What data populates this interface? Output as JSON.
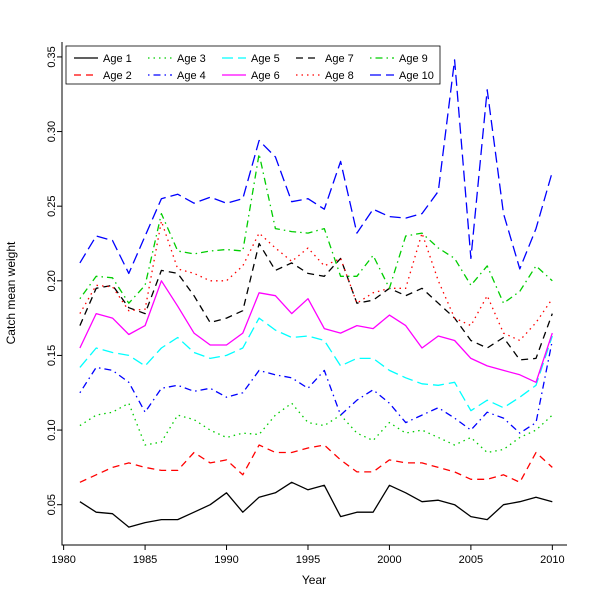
{
  "chart_data": {
    "type": "line",
    "title": "",
    "xlabel": "Year",
    "ylabel": "Catch mean weight",
    "xlim": [
      1979.9,
      2010.9
    ],
    "ylim": [
      0.023,
      0.36
    ],
    "x_ticks": [
      1980,
      1985,
      1990,
      1995,
      2000,
      2005,
      2010
    ],
    "y_ticks": [
      0.05,
      0.1,
      0.15,
      0.2,
      0.25,
      0.3,
      0.35
    ],
    "grid": false,
    "legend": {
      "position": "top-left",
      "columns": 5,
      "rows": 2,
      "border": true
    },
    "x": [
      1981,
      1982,
      1983,
      1984,
      1985,
      1986,
      1987,
      1988,
      1989,
      1990,
      1991,
      1992,
      1993,
      1994,
      1995,
      1996,
      1997,
      1998,
      1999,
      2000,
      2001,
      2002,
      2003,
      2004,
      2005,
      2006,
      2007,
      2008,
      2009,
      2010
    ],
    "series": [
      {
        "name": "Age 1",
        "color": "#000000",
        "dash": "solid",
        "values": [
          0.052,
          0.045,
          0.044,
          0.035,
          0.038,
          0.04,
          0.04,
          0.045,
          0.05,
          0.058,
          0.045,
          0.055,
          0.058,
          0.065,
          0.06,
          0.063,
          0.042,
          0.045,
          0.045,
          0.063,
          0.058,
          0.052,
          0.053,
          0.05,
          0.042,
          0.04,
          0.05,
          0.052,
          0.055,
          0.052
        ]
      },
      {
        "name": "Age 2",
        "color": "#FF0000",
        "dash": "dashed",
        "values": [
          0.065,
          0.07,
          0.075,
          0.078,
          0.075,
          0.073,
          0.073,
          0.085,
          0.078,
          0.08,
          0.07,
          0.09,
          0.085,
          0.085,
          0.088,
          0.09,
          0.08,
          0.072,
          0.072,
          0.08,
          0.078,
          0.078,
          0.075,
          0.072,
          0.067,
          0.067,
          0.07,
          0.065,
          0.085,
          0.075
        ]
      },
      {
        "name": "Age 3",
        "color": "#00CD00",
        "dash": "dotted",
        "values": [
          0.103,
          0.11,
          0.112,
          0.118,
          0.09,
          0.092,
          0.11,
          0.107,
          0.1,
          0.095,
          0.098,
          0.097,
          0.11,
          0.118,
          0.105,
          0.103,
          0.11,
          0.098,
          0.093,
          0.105,
          0.098,
          0.1,
          0.095,
          0.09,
          0.095,
          0.085,
          0.087,
          0.095,
          0.1,
          0.11
        ]
      },
      {
        "name": "Age 4",
        "color": "#0000FF",
        "dash": "dotdash",
        "values": [
          0.125,
          0.142,
          0.14,
          0.132,
          0.112,
          0.128,
          0.13,
          0.126,
          0.128,
          0.122,
          0.125,
          0.14,
          0.137,
          0.135,
          0.128,
          0.14,
          0.11,
          0.12,
          0.127,
          0.118,
          0.105,
          0.11,
          0.115,
          0.108,
          0.1,
          0.112,
          0.108,
          0.098,
          0.105,
          0.16
        ]
      },
      {
        "name": "Age 5",
        "color": "#00FFFF",
        "dash": "longdash",
        "values": [
          0.142,
          0.155,
          0.152,
          0.15,
          0.143,
          0.155,
          0.162,
          0.152,
          0.148,
          0.15,
          0.155,
          0.175,
          0.167,
          0.162,
          0.163,
          0.16,
          0.143,
          0.148,
          0.148,
          0.14,
          0.135,
          0.131,
          0.13,
          0.132,
          0.113,
          0.12,
          0.115,
          0.122,
          0.13,
          0.163
        ]
      },
      {
        "name": "Age 6",
        "color": "#FF00FF",
        "dash": "solid",
        "values": [
          0.155,
          0.178,
          0.175,
          0.164,
          0.17,
          0.2,
          0.183,
          0.165,
          0.157,
          0.157,
          0.165,
          0.192,
          0.19,
          0.178,
          0.188,
          0.168,
          0.165,
          0.17,
          0.168,
          0.177,
          0.17,
          0.155,
          0.163,
          0.16,
          0.148,
          0.143,
          0.14,
          0.137,
          0.132,
          0.165
        ]
      },
      {
        "name": "Age 7",
        "color": "#000000",
        "dash": "dashed",
        "values": [
          0.17,
          0.195,
          0.197,
          0.182,
          0.178,
          0.207,
          0.205,
          0.19,
          0.172,
          0.175,
          0.18,
          0.225,
          0.207,
          0.212,
          0.205,
          0.203,
          0.215,
          0.185,
          0.187,
          0.195,
          0.19,
          0.195,
          0.185,
          0.175,
          0.16,
          0.155,
          0.162,
          0.147,
          0.148,
          0.178
        ]
      },
      {
        "name": "Age 8",
        "color": "#FF0000",
        "dash": "dotted",
        "values": [
          0.178,
          0.197,
          0.196,
          0.18,
          0.181,
          0.24,
          0.208,
          0.205,
          0.2,
          0.2,
          0.21,
          0.232,
          0.222,
          0.213,
          0.222,
          0.21,
          0.215,
          0.185,
          0.192,
          0.195,
          0.195,
          0.232,
          0.2,
          0.175,
          0.17,
          0.19,
          0.165,
          0.16,
          0.172,
          0.188
        ]
      },
      {
        "name": "Age 9",
        "color": "#00CD00",
        "dash": "dotdash",
        "values": [
          0.188,
          0.203,
          0.202,
          0.185,
          0.197,
          0.245,
          0.22,
          0.218,
          0.22,
          0.221,
          0.22,
          0.285,
          0.235,
          0.233,
          0.232,
          0.235,
          0.203,
          0.203,
          0.217,
          0.195,
          0.23,
          0.232,
          0.222,
          0.215,
          0.197,
          0.21,
          0.185,
          0.193,
          0.21,
          0.2
        ]
      },
      {
        "name": "Age 10",
        "color": "#0000FF",
        "dash": "longdash",
        "values": [
          0.212,
          0.23,
          0.227,
          0.205,
          0.23,
          0.255,
          0.258,
          0.252,
          0.256,
          0.252,
          0.255,
          0.294,
          0.283,
          0.253,
          0.255,
          0.248,
          0.28,
          0.232,
          0.248,
          0.243,
          0.242,
          0.245,
          0.26,
          0.348,
          0.215,
          0.328,
          0.245,
          0.208,
          0.235,
          0.273
        ]
      }
    ]
  }
}
